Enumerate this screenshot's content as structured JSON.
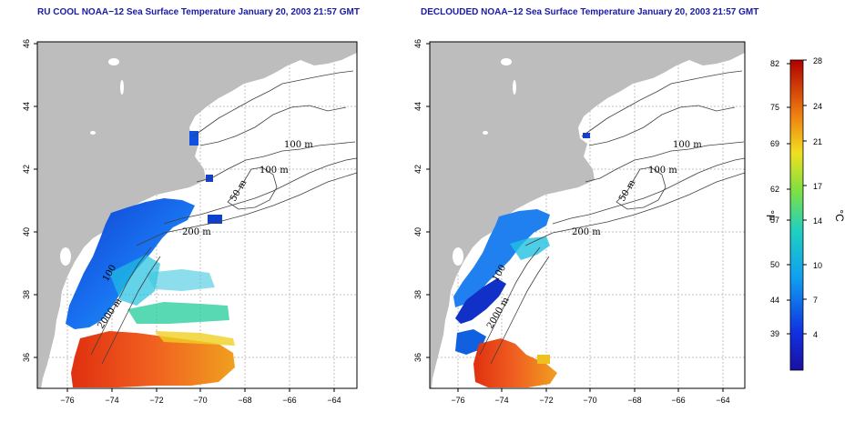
{
  "panels": [
    {
      "title": "RU COOL NOAA−12 Sea Surface Temperature January 20, 2003 21:57 GMT",
      "contour_labels": [
        "100 m",
        "100 m",
        "50 m",
        "200 m",
        "200 m",
        "2000 m",
        "100"
      ]
    },
    {
      "title": "DECLOUDED NOAA−12 Sea Surface Temperature January 20, 2003 21:57 GMT",
      "contour_labels": [
        "100 m",
        "100 m",
        "50 m",
        "200 m",
        "200 m",
        "2000 m",
        "100"
      ]
    }
  ],
  "axes": {
    "x_ticks": [
      "−76",
      "−74",
      "−72",
      "−70",
      "−68",
      "−66",
      "−64"
    ],
    "y_ticks": [
      "36",
      "38",
      "40",
      "42",
      "44",
      "46"
    ],
    "xlim": [
      -77,
      -63
    ],
    "ylim": [
      35,
      46
    ]
  },
  "colorbar": {
    "fahrenheit_ticks": [
      "82",
      "75",
      "69",
      "62",
      "57",
      "50",
      "44",
      "39"
    ],
    "celsius_ticks": [
      "28",
      "24",
      "21",
      "17",
      "14",
      "10",
      "7",
      "4"
    ],
    "fahrenheit_unit": "°F",
    "celsius_unit": "°C"
  },
  "colors": {
    "land": "#bdbdbd",
    "title": "#1a1aa6",
    "cold": "#1030c8",
    "warm": "#e02010"
  }
}
